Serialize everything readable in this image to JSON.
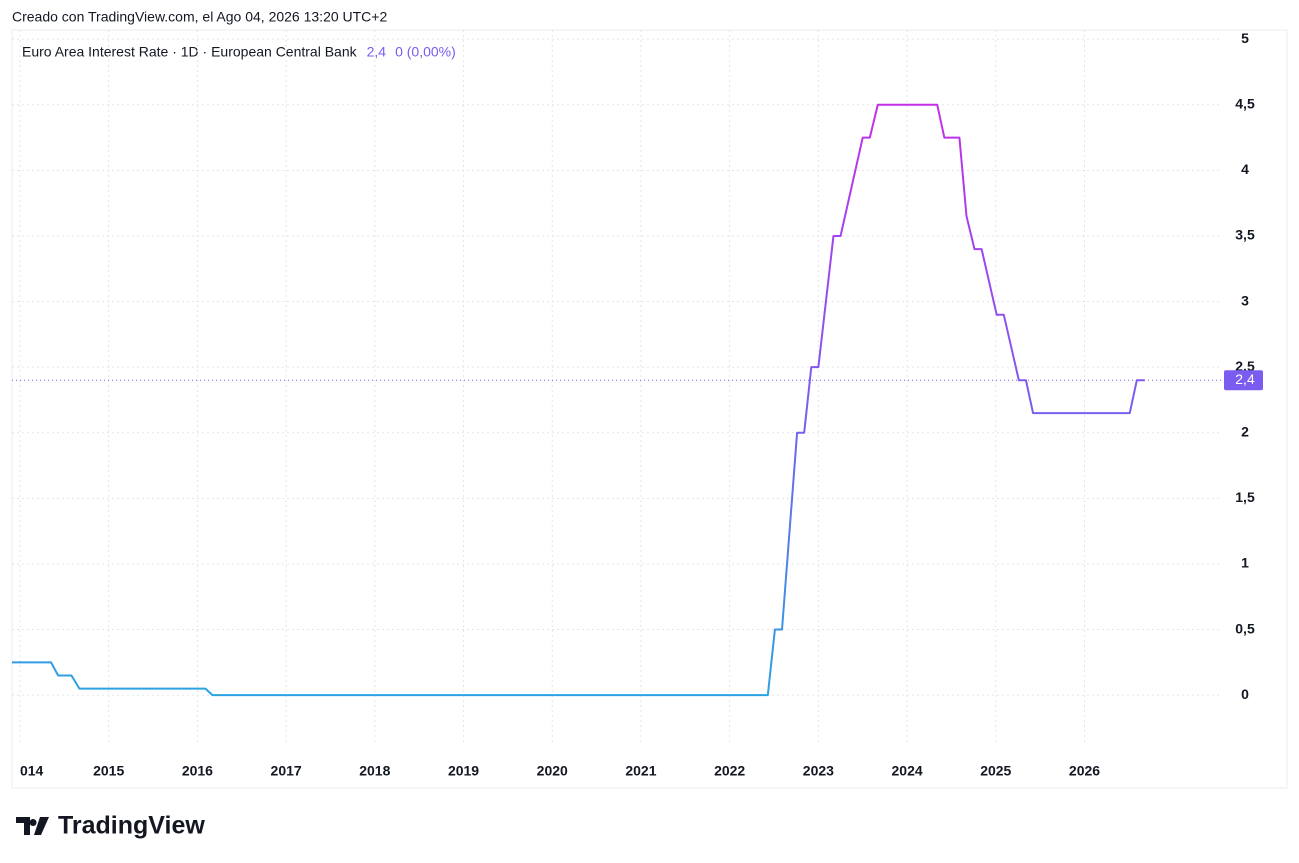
{
  "header": {
    "credit": "Creado con TradingView.com, el Ago 04, 2026 13:20 UTC+2",
    "logo": "TradingView"
  },
  "chart_data": {
    "type": "line",
    "title": "Euro Area Interest Rate · 1D · European Central Bank",
    "last_value": {
      "value": 2.4,
      "label": "2,4"
    },
    "change": {
      "value": 0,
      "label": "0 (0,00%)"
    },
    "gradient_colors": [
      "#2aa3e2",
      "#7b5cf0",
      "#c52ee9"
    ],
    "label_color": "#7b5cf0",
    "grid": true,
    "xlim": [
      2013.91,
      2027.55
    ],
    "ylim": [
      -0.38,
      5.07
    ],
    "xticks": [
      {
        "value": 2014,
        "label": "014"
      },
      2015,
      2016,
      2017,
      2018,
      2019,
      2020,
      2021,
      2022,
      2023,
      2024,
      2025,
      2026
    ],
    "yticks": [
      0,
      {
        "value": 0.5,
        "label": "0,5"
      },
      1,
      {
        "value": 1.5,
        "label": "1,5"
      },
      2,
      {
        "value": 2.5,
        "label": "2,5"
      },
      3,
      {
        "value": 3.5,
        "label": "3,5"
      },
      4,
      {
        "value": 4.5,
        "label": "4,5"
      },
      5
    ],
    "series": [
      {
        "name": "Euro Area Interest Rate",
        "x": [
          2013.91,
          2014.35,
          2014.43,
          2014.58,
          2014.67,
          2016.09,
          2016.17,
          2022.43,
          2022.51,
          2022.59,
          2022.76,
          2022.84,
          2022.92,
          2023.0,
          2023.17,
          2023.25,
          2023.5,
          2023.58,
          2023.67,
          2024.34,
          2024.42,
          2024.59,
          2024.67,
          2024.76,
          2024.84,
          2025.01,
          2025.09,
          2025.26,
          2025.34,
          2025.42,
          2026.51,
          2026.59,
          2026.68
        ],
        "values": [
          0.25,
          0.25,
          0.15,
          0.15,
          0.05,
          0.05,
          0,
          0,
          0.5,
          0.5,
          2,
          2,
          2.5,
          2.5,
          3.5,
          3.5,
          4.25,
          4.25,
          4.5,
          4.5,
          4.25,
          4.25,
          3.65,
          3.4,
          3.4,
          2.9,
          2.9,
          2.4,
          2.4,
          2.15,
          2.15,
          2.4,
          2.4
        ]
      }
    ]
  }
}
